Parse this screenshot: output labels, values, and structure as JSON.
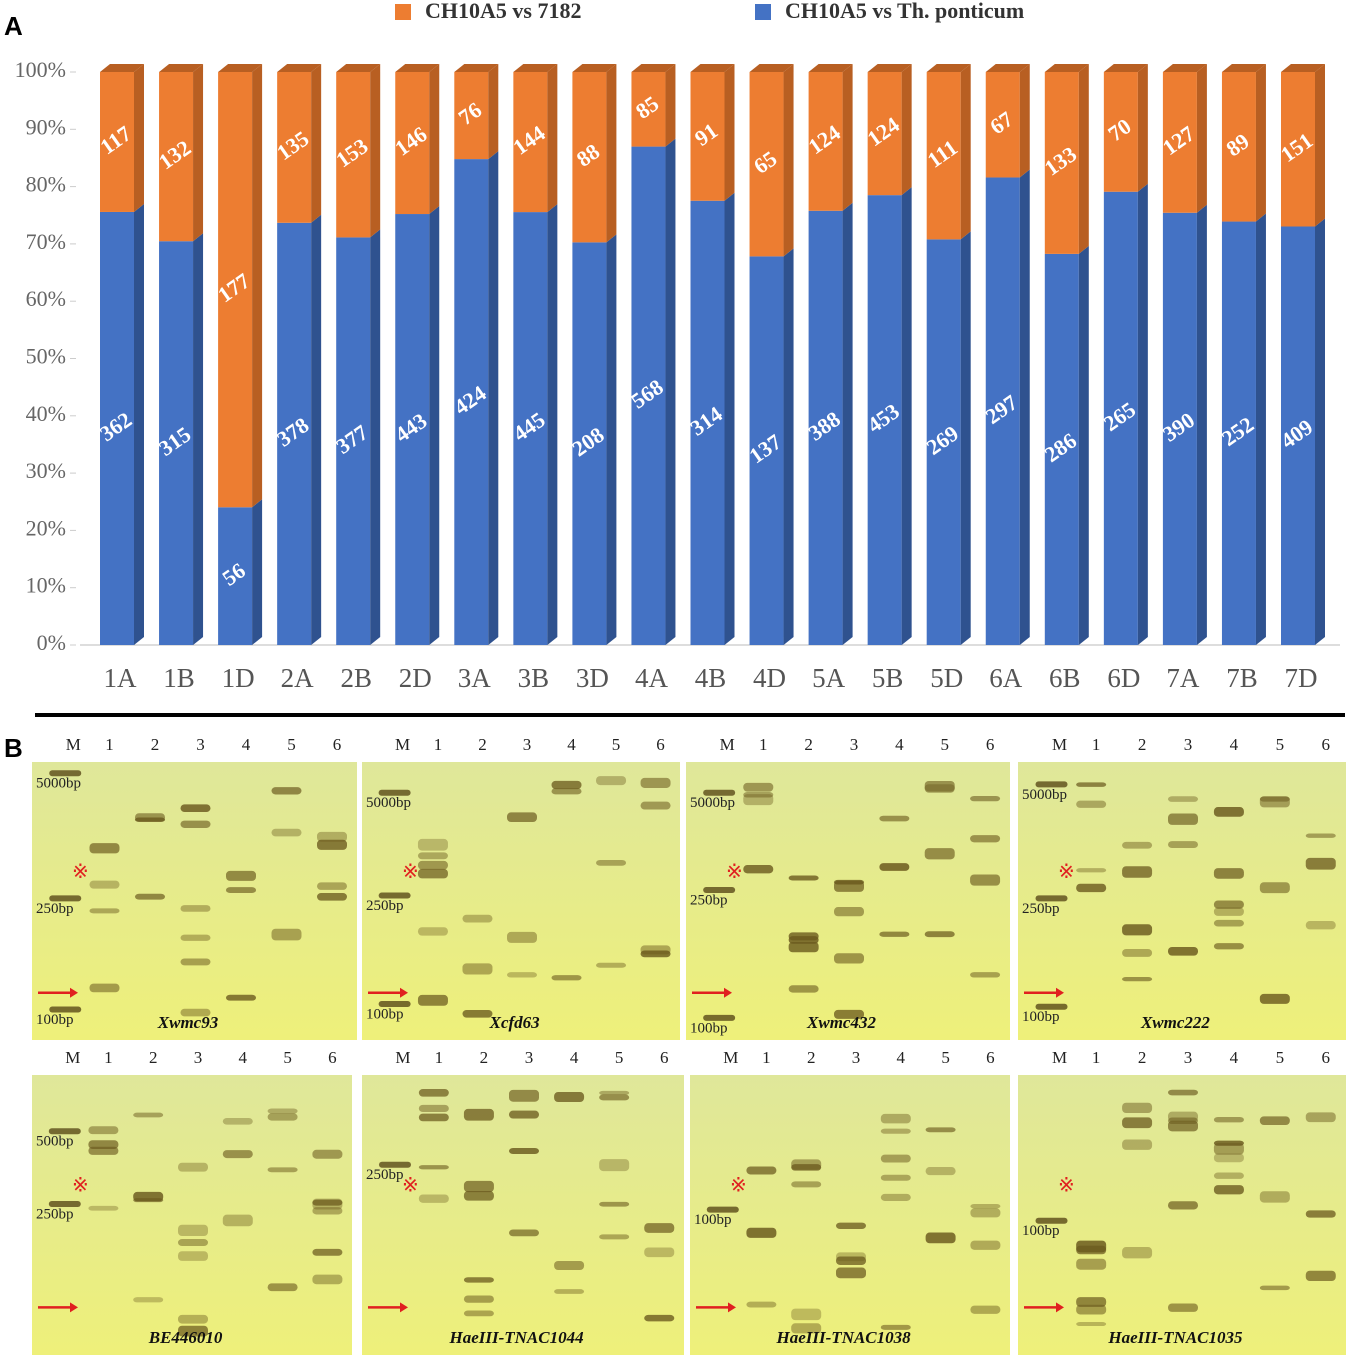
{
  "chart_data": {
    "type": "bar",
    "stack": "percent",
    "panel_label": "A",
    "categories": [
      "1A",
      "1B",
      "1D",
      "2A",
      "2B",
      "2D",
      "3A",
      "3B",
      "3D",
      "4A",
      "4B",
      "4D",
      "5A",
      "5B",
      "5D",
      "6A",
      "6B",
      "6D",
      "7A",
      "7B",
      "7D"
    ],
    "series": [
      {
        "name": "CH10A5 vs Th. ponticum",
        "color": "#4472c4",
        "side_color": "#2f528f",
        "values": [
          362,
          315,
          56,
          378,
          377,
          443,
          424,
          445,
          208,
          568,
          314,
          137,
          388,
          453,
          269,
          297,
          286,
          265,
          390,
          252,
          409
        ]
      },
      {
        "name": "CH10A5 vs 7182",
        "color": "#ed7d31",
        "side_color": "#b85f22",
        "values": [
          117,
          132,
          177,
          135,
          153,
          146,
          76,
          144,
          88,
          85,
          91,
          65,
          124,
          124,
          111,
          67,
          133,
          70,
          127,
          89,
          151
        ]
      }
    ],
    "ylim": [
      0,
      100
    ],
    "yticks": [
      {
        "value": 0,
        "label": "0%"
      },
      {
        "value": 10,
        "label": "10%"
      },
      {
        "value": 20,
        "label": "20%"
      },
      {
        "value": 30,
        "label": "30%"
      },
      {
        "value": 40,
        "label": "40%"
      },
      {
        "value": 50,
        "label": "50%"
      },
      {
        "value": 60,
        "label": "60%"
      },
      {
        "value": 70,
        "label": "70%"
      },
      {
        "value": 80,
        "label": "80%"
      },
      {
        "value": 90,
        "label": "90%"
      },
      {
        "value": 100,
        "label": "100%"
      }
    ],
    "legend": "top"
  },
  "gel_panel": {
    "panel_label": "B",
    "lanes": [
      "M",
      "1",
      "2",
      "3",
      "4",
      "5",
      "6"
    ],
    "symbol": "※",
    "gels": [
      {
        "name": "Xwmc93",
        "markers": [
          "5000bp",
          "250bp",
          "100bp"
        ]
      },
      {
        "name": "Xcfd63",
        "markers": [
          "5000bp",
          "250bp",
          "100bp"
        ]
      },
      {
        "name": "Xwmc432",
        "markers": [
          "5000bp",
          "250bp",
          "100bp"
        ]
      },
      {
        "name": "Xwmc222",
        "markers": [
          "5000bp",
          "250bp",
          "100bp"
        ]
      },
      {
        "name": "BE446010",
        "markers": [
          "500bp",
          "250bp"
        ]
      },
      {
        "name": "HaeIII-TNAC1044",
        "markers": [
          "250bp"
        ]
      },
      {
        "name": "HaeIII-TNAC1038",
        "markers": [
          "100bp"
        ]
      },
      {
        "name": "HaeIII-TNAC1035",
        "markers": [
          "100bp"
        ]
      }
    ]
  }
}
